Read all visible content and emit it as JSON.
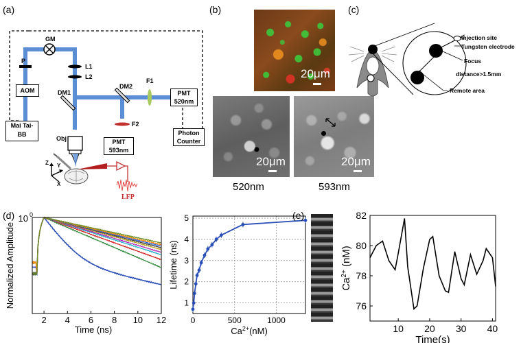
{
  "panels": {
    "a": "(a)",
    "b": "(b)",
    "c": "(c)",
    "d": "(d)",
    "e": "(e)"
  },
  "setup": {
    "gm": "GM",
    "p": "P",
    "aom": "AOM",
    "laser": "Mai Tai-\nBB",
    "l1": "L1",
    "l2": "L2",
    "dm1": "DM1",
    "dm2": "DM2",
    "f1": "F1",
    "f2": "F2",
    "pmt520": "PMT\n520nm",
    "pmt593": "PMT\n593nm",
    "photon": "Photon\nCounter",
    "obj": "Obj",
    "z": "Z",
    "y": "Y",
    "x": "X",
    "lfp": "LFP"
  },
  "micro": {
    "scale": "20μm",
    "cap520": "520nm",
    "cap593": "593nm"
  },
  "diagram_c": {
    "injection": "Injection site",
    "tungsten": "Tungsten electrode",
    "focus": "Focus",
    "distance": "distance>1.5mm",
    "remote": "Remote area"
  },
  "chart_data": [
    {
      "type": "line",
      "panel": "d-left",
      "ylabel": "Normalized Amplitude",
      "xlabel": "Time (ns)",
      "xticks": [
        "2",
        "4",
        "6",
        "8",
        "10",
        "12"
      ],
      "ytick_top": "10",
      "ytick_top_exp": "0",
      "xlim": [
        1,
        12
      ],
      "yscale": "log",
      "series_colors": [
        "#2b4fb8",
        "#2e8b3a",
        "#d62020",
        "#1fb3c8",
        "#b02ab8",
        "#b8a020",
        "#444444",
        "#3a66d8",
        "#ff8c00",
        "#6b8e23"
      ],
      "decay_tau_ns": [
        1.0,
        3.2,
        3.8,
        4.3,
        4.6,
        5.0,
        5.3,
        5.6,
        5.9,
        6.3
      ]
    },
    {
      "type": "line",
      "panel": "d-right",
      "ylabel": "Lifetime (ns)",
      "xlabel": "Ca2+(nM)",
      "xlabel_base": "Ca",
      "xlabel_sup": "2+",
      "xlabel_unit": "(nM)",
      "xticks": [
        "0",
        "500",
        "1000"
      ],
      "yticks": [
        "1",
        "2",
        "3",
        "4",
        "5"
      ],
      "xlim": [
        0,
        1350
      ],
      "ylim": [
        0.5,
        5.1
      ],
      "grid": true,
      "color": "#2b4fb8",
      "x": [
        0,
        10,
        20,
        35,
        50,
        75,
        100,
        140,
        180,
        230,
        280,
        340,
        600,
        1350
      ],
      "y": [
        0.7,
        1.0,
        1.45,
        1.9,
        2.3,
        2.55,
        2.9,
        3.25,
        3.55,
        3.75,
        4.0,
        4.2,
        4.7,
        4.9
      ]
    },
    {
      "type": "line",
      "panel": "e",
      "ylabel": "Ca2+ (nM)",
      "ylabel_base": "Ca",
      "ylabel_sup": "2+",
      "ylabel_unit": " (nM)",
      "xlabel": "Time(s)",
      "xticks": [
        "10",
        "20",
        "30",
        "40"
      ],
      "yticks": [
        "76",
        "78",
        "80",
        "82"
      ],
      "xlim": [
        1,
        41
      ],
      "ylim": [
        75,
        82
      ],
      "color": "#000000",
      "x": [
        1,
        3,
        5,
        7,
        9,
        10,
        12,
        13,
        15,
        16,
        18,
        20,
        21,
        23,
        25,
        26,
        28,
        30,
        31,
        33,
        35,
        37,
        38,
        40,
        41
      ],
      "y": [
        79.2,
        80.0,
        80.3,
        79.0,
        78.4,
        79.5,
        81.8,
        78.6,
        75.8,
        76.0,
        78.5,
        80.4,
        80.6,
        78.0,
        77.0,
        76.9,
        79.6,
        77.8,
        77.4,
        79.4,
        78.1,
        79.0,
        79.8,
        79.2,
        77.3
      ]
    }
  ]
}
